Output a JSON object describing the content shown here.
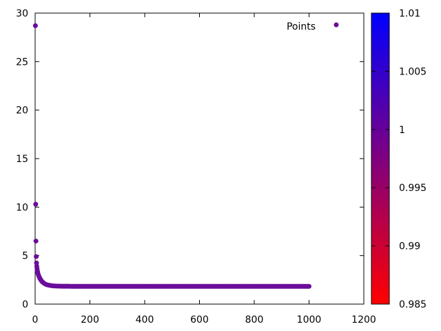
{
  "chart_data": {
    "type": "scatter",
    "series": [
      {
        "name": "Points",
        "color": "#6a0d9a",
        "x": [
          1,
          2,
          3,
          4,
          5,
          6,
          7,
          8,
          9,
          10,
          12,
          14,
          16,
          18,
          20,
          23,
          26,
          30,
          35,
          40,
          45,
          50,
          60,
          70,
          80,
          90,
          100,
          150,
          200,
          250,
          300,
          350,
          400,
          450,
          500,
          550,
          600,
          650,
          700,
          750,
          800,
          850,
          900,
          950,
          1000
        ],
        "y": [
          28.7,
          10.3,
          6.5,
          4.9,
          4.25,
          3.9,
          3.65,
          3.45,
          3.3,
          3.18,
          3.0,
          2.85,
          2.72,
          2.62,
          2.52,
          2.4,
          2.3,
          2.2,
          2.1,
          2.03,
          1.98,
          1.95,
          1.9,
          1.87,
          1.86,
          1.85,
          1.84,
          1.83,
          1.83,
          1.83,
          1.83,
          1.83,
          1.83,
          1.83,
          1.83,
          1.83,
          1.83,
          1.83,
          1.83,
          1.83,
          1.83,
          1.83,
          1.83,
          1.83,
          1.83
        ]
      }
    ],
    "xlim": [
      0,
      1200
    ],
    "ylim": [
      0,
      30
    ],
    "x_ticks": [
      "0",
      "200",
      "400",
      "600",
      "800",
      "1000",
      "1200"
    ],
    "y_ticks": [
      "0",
      "5",
      "10",
      "15",
      "20",
      "25",
      "30"
    ],
    "legend_position": "top-right",
    "grid": false,
    "colorbar": {
      "min": 0.985,
      "max": 1.01,
      "ticks": [
        "0.985",
        "0.99",
        "0.995",
        "1",
        "1.005",
        "1.01"
      ],
      "color_low": "#ff0000",
      "color_high": "#0000ff"
    }
  }
}
